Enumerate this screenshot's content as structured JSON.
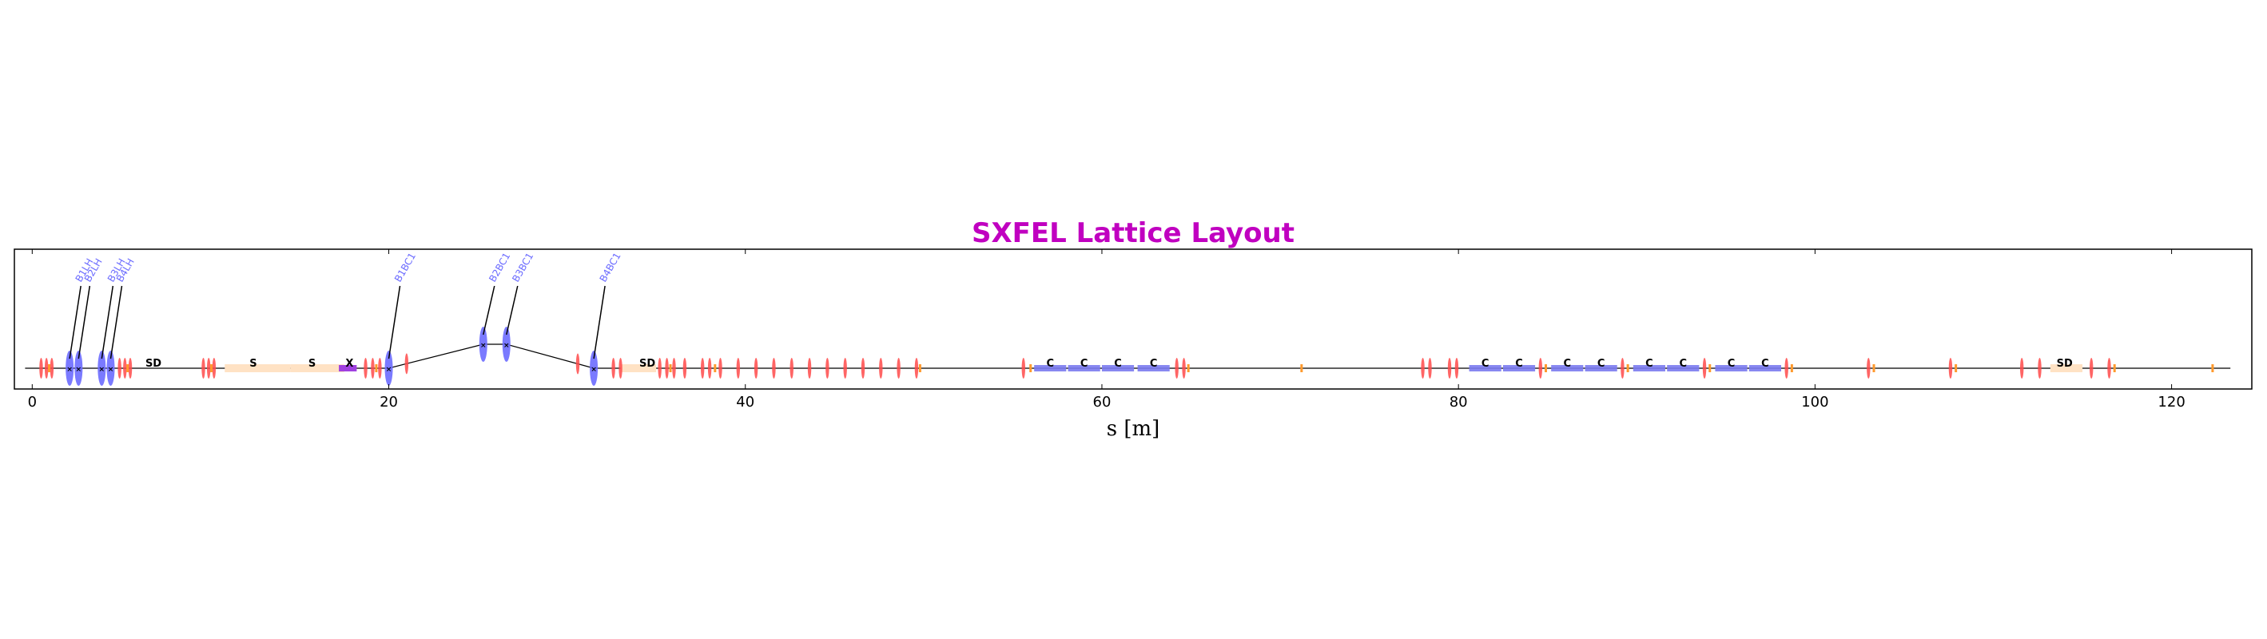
{
  "title": "SXFEL Lattice Layout",
  "xlabel": "s [m]",
  "colors": {
    "title": "#c000c0",
    "quad": "#ff4a4a",
    "bend": "#6b6bff",
    "cavity": "#7b7bf0",
    "solenoid": "#ffe2c4",
    "corrector": "#ff9a2e",
    "deflector": "#a040e0",
    "beamline": "#000000"
  },
  "chart_data": {
    "type": "lattice-layout",
    "xlim": [
      -1,
      124.5
    ],
    "xticks": [
      0,
      20,
      40,
      60,
      80,
      100,
      120
    ],
    "xtick_labels": [
      "0",
      "20",
      "40",
      "60",
      "80",
      "100",
      "120"
    ],
    "beam_offsets": [
      {
        "s": 20.0,
        "dy": 0
      },
      {
        "s": 25.3,
        "dy": 1
      },
      {
        "s": 26.6,
        "dy": 1
      },
      {
        "s": 31.5,
        "dy": 0
      }
    ],
    "quadrupoles": [
      0.5,
      0.8,
      1.1,
      4.9,
      5.2,
      5.5,
      9.6,
      9.9,
      10.2,
      18.7,
      19.1,
      19.5,
      21.0,
      30.6,
      32.6,
      33.0,
      35.2,
      35.6,
      36.0,
      36.6,
      37.6,
      38.0,
      38.6,
      39.6,
      40.6,
      41.6,
      42.6,
      43.6,
      44.6,
      45.6,
      46.6,
      47.6,
      48.6,
      49.6,
      55.6,
      64.2,
      64.6,
      78.0,
      78.4,
      79.5,
      79.9,
      84.6,
      89.2,
      93.8,
      98.4,
      103.0,
      107.6,
      111.6,
      112.6,
      115.5,
      116.5
    ],
    "correctors": [
      0.95,
      5.35,
      10.05,
      19.3,
      35.8,
      38.3,
      49.8,
      56.0,
      64.85,
      71.2,
      84.9,
      89.5,
      94.1,
      98.7,
      103.3,
      107.9,
      116.8,
      122.3
    ],
    "solenoids": [
      {
        "start": 10.8,
        "end": 14.5
      },
      {
        "start": 14.5,
        "end": 17.5
      },
      {
        "start": 33.0,
        "end": 35.0
      },
      {
        "start": 113.2,
        "end": 115.0
      }
    ],
    "cavities": [
      {
        "start": 56.2,
        "end": 58.0
      },
      {
        "start": 58.1,
        "end": 59.9
      },
      {
        "start": 60.0,
        "end": 61.8
      },
      {
        "start": 62.0,
        "end": 63.8
      },
      {
        "start": 80.6,
        "end": 82.4
      },
      {
        "start": 82.5,
        "end": 84.3
      },
      {
        "start": 85.2,
        "end": 87.0
      },
      {
        "start": 87.1,
        "end": 88.9
      },
      {
        "start": 89.8,
        "end": 91.6
      },
      {
        "start": 91.7,
        "end": 93.5
      },
      {
        "start": 94.4,
        "end": 96.2
      },
      {
        "start": 96.3,
        "end": 98.1
      }
    ],
    "deflector": {
      "start": 17.2,
      "end": 18.2
    },
    "bends": [
      {
        "s": 2.1,
        "label": "B1LH",
        "raised": false
      },
      {
        "s": 2.6,
        "label": "B2LH",
        "raised": false
      },
      {
        "s": 3.9,
        "label": "B3LH",
        "raised": false
      },
      {
        "s": 4.4,
        "label": "B4LH",
        "raised": false
      },
      {
        "s": 20.0,
        "label": "B1BC1",
        "raised": false
      },
      {
        "s": 25.3,
        "label": "B2BC1",
        "raised": true
      },
      {
        "s": 26.6,
        "label": "B3BC1",
        "raised": true
      },
      {
        "s": 31.5,
        "label": "B4BC1",
        "raised": false
      }
    ],
    "text_markers": [
      {
        "s": 6.8,
        "text": "SD"
      },
      {
        "s": 12.4,
        "text": "S"
      },
      {
        "s": 15.7,
        "text": "S"
      },
      {
        "s": 17.8,
        "text": "X"
      },
      {
        "s": 34.5,
        "text": "SD"
      },
      {
        "s": 57.1,
        "text": "C"
      },
      {
        "s": 59.0,
        "text": "C"
      },
      {
        "s": 60.9,
        "text": "C"
      },
      {
        "s": 62.9,
        "text": "C"
      },
      {
        "s": 81.5,
        "text": "C"
      },
      {
        "s": 83.4,
        "text": "C"
      },
      {
        "s": 86.1,
        "text": "C"
      },
      {
        "s": 88.0,
        "text": "C"
      },
      {
        "s": 90.7,
        "text": "C"
      },
      {
        "s": 92.6,
        "text": "C"
      },
      {
        "s": 95.3,
        "text": "C"
      },
      {
        "s": 97.2,
        "text": "C"
      },
      {
        "s": 114.0,
        "text": "SD"
      }
    ]
  }
}
